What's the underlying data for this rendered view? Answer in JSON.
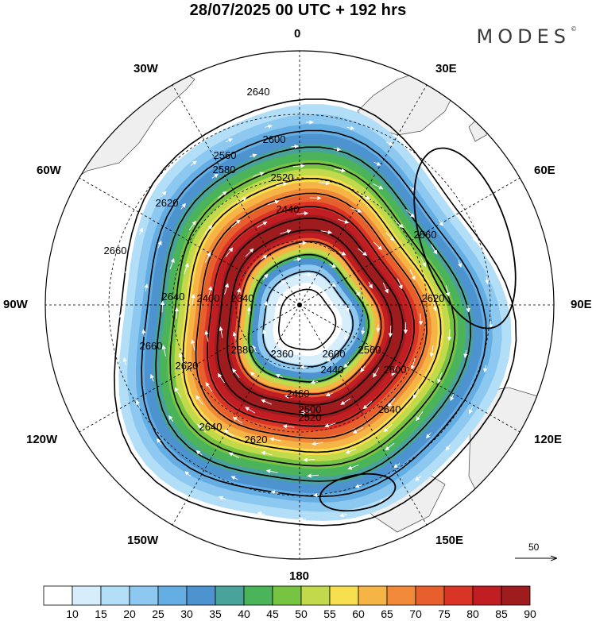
{
  "title": "28/07/2025  00 UTC  + 192 hrs",
  "brand": "MODES",
  "brand_mark": "©",
  "longitude_labels": {
    "north": "0",
    "n30e": "30E",
    "e60": "60E",
    "e90": "90E",
    "e120": "120E",
    "e150": "150E",
    "south": "180",
    "w150": "150W",
    "w120": "120W",
    "w90": "90W",
    "w60": "60W",
    "w30": "30W"
  },
  "contour_labels": [
    "2640",
    "2600",
    "2560",
    "2520",
    "2440",
    "2360",
    "2340",
    "2400",
    "2380",
    "2560",
    "2600",
    "2620",
    "2640",
    "2660",
    "2660",
    "2620",
    "2580",
    "2620",
    "2640",
    "2620",
    "2600",
    "2440",
    "2460",
    "2500",
    "2520",
    "2560",
    "2640"
  ],
  "colorbar": {
    "ticks": [
      "10",
      "15",
      "20",
      "25",
      "30",
      "35",
      "40",
      "45",
      "50",
      "55",
      "60",
      "65",
      "70",
      "75",
      "80",
      "85",
      "90"
    ],
    "colors": [
      "#ffffff",
      "#d6eefc",
      "#b2dff7",
      "#8cc8ef",
      "#64aee3",
      "#4c93cf",
      "#4aa39a",
      "#4bb35a",
      "#77c443",
      "#c1d94a",
      "#f7de4f",
      "#f5b445",
      "#f08a38",
      "#e85f2e",
      "#d93426",
      "#c01e23",
      "#9e1b1e"
    ]
  },
  "vector_reference": "50",
  "colors": {
    "land": "#efefef",
    "coast": "#555555",
    "grid": "#000000"
  }
}
